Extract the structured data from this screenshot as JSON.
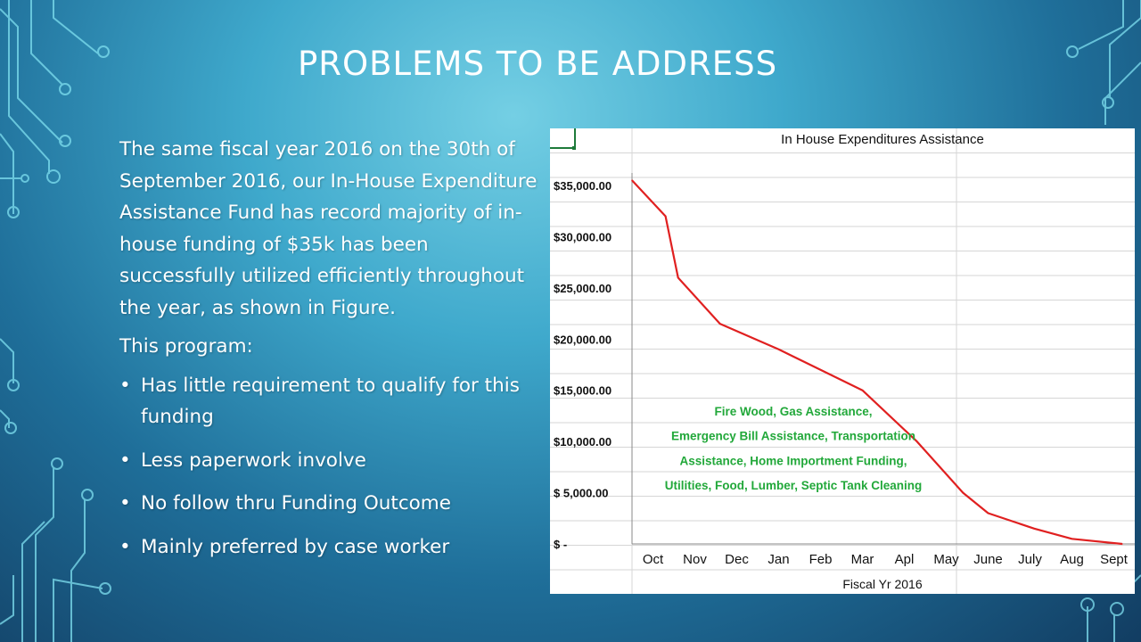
{
  "slide": {
    "title": "PROBLEMS TO BE ADDRESS",
    "paragraph": "The same fiscal year 2016 on the 30th of September 2016, our In-House Expenditure Assistance Fund has record majority of in-house funding of $35k has been successfully utilized efficiently throughout the year, as shown in Figure.",
    "program_label": "This program:",
    "bullet_symbol": "•",
    "bullets": [
      "Has little requirement to qualify for this funding",
      "Less paperwork involve",
      "No follow thru Funding Outcome",
      "Mainly preferred by case worker"
    ]
  },
  "chart_data": {
    "type": "line",
    "title": "In House Expenditures Assistance",
    "xlabel": "Fiscal Yr 2016",
    "categories": [
      "Oct",
      "Nov",
      "Dec",
      "Jan",
      "Feb",
      "Mar",
      "Apl",
      "May",
      "June",
      "July",
      "Aug",
      "Sept"
    ],
    "y_tick_labels": [
      "$35,000.00",
      "$30,000.00",
      "$25,000.00",
      "$20,000.00",
      "$15,000.00",
      "$10,000.00",
      "$  5,000.00",
      "$         -"
    ],
    "ylim": [
      0,
      37000
    ],
    "series": [
      {
        "color": "#e02020",
        "x": [
          0,
          0.8,
          1.1,
          2.1,
          3.5,
          4.5,
          5.5,
          6.8,
          7.9,
          8.5,
          9.6,
          10.5,
          11.7
        ],
        "y": [
          35500,
          32000,
          26000,
          21500,
          19000,
          17000,
          15000,
          10000,
          5000,
          3000,
          1500,
          500,
          0
        ]
      }
    ],
    "annotation": {
      "lines": [
        "Fire Wood, Gas Assistance,",
        "Emergency Bill Assistance, Transportation",
        "Assistance, Home Importment Funding,",
        "Utilities, Food, Lumber, Septic Tank Cleaning"
      ],
      "color": "#22a83a"
    },
    "grid": true
  }
}
